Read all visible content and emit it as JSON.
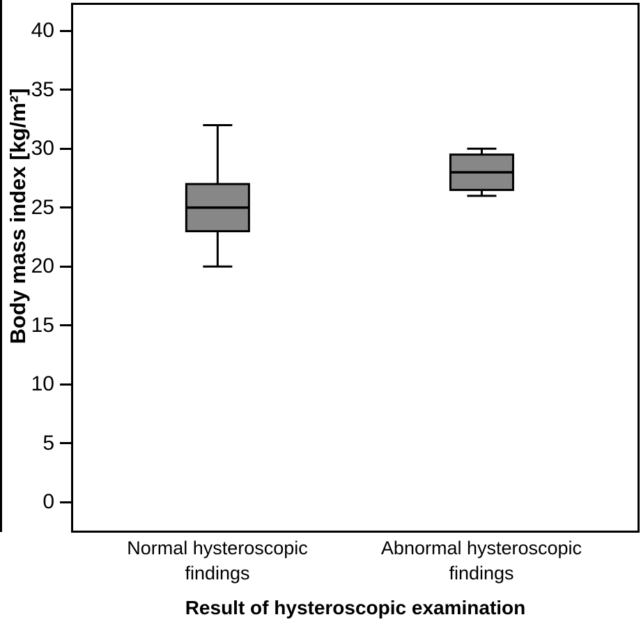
{
  "chart_data": {
    "type": "boxplot",
    "title": "",
    "xlabel": "Result of hysteroscopic examination",
    "ylabel": "Body mass index [kg/m²]",
    "ylim": [
      -2.4,
      42.2
    ],
    "yticks": [
      0,
      5,
      10,
      15,
      20,
      25,
      30,
      35,
      40
    ],
    "grid": false,
    "legend": null,
    "categories": [
      "Normal hysteroscopic findings",
      "Abnormal hysteroscopic findings"
    ],
    "series": [
      {
        "name": "Normal hysteroscopic findings",
        "whisker_low": 20,
        "q1": 23,
        "median": 25,
        "q3": 27,
        "whisker_high": 32
      },
      {
        "name": "Abnormal hysteroscopic findings",
        "whisker_low": 26,
        "q1": 26.5,
        "median": 28,
        "q3": 29.5,
        "whisker_high": 30
      }
    ],
    "colors": {
      "box_fill": "#878787",
      "line": "#000000",
      "background": "#ffffff"
    }
  }
}
